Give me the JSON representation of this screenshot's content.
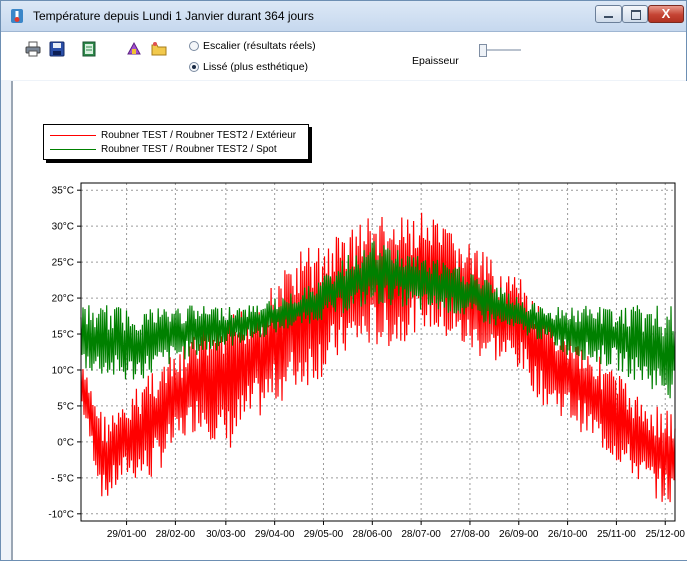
{
  "window": {
    "title": "Température depuis Lundi 1 Janvier durant 364 jours",
    "controls": {
      "minimize": "minimize",
      "maximize": "maximize",
      "close": "X"
    }
  },
  "toolbar": {
    "icons": [
      "printer-icon",
      "save-disk-icon",
      "book-icon",
      "paint-icon",
      "folder-icon"
    ],
    "mode_options": [
      {
        "label": "Escalier (résultats réels)",
        "checked": false
      },
      {
        "label": "Lissé (plus  esthétique)",
        "checked": true
      }
    ],
    "thickness_label": "Epaisseur",
    "thickness_value": 0
  },
  "chart_data": {
    "type": "line",
    "title": "",
    "xlabel": "",
    "ylabel": "",
    "y_unit": "°C",
    "ylim": [
      -11,
      36
    ],
    "yticks": [
      35,
      30,
      25,
      20,
      15,
      10,
      5,
      0,
      -5,
      -10
    ],
    "ytick_labels": [
      "35°C",
      "30°C",
      "25°C",
      "20°C",
      "15°C",
      "10°C",
      "5°C",
      "0°C",
      "- 5°C",
      "-10°C"
    ],
    "xlim": [
      "01/01-00",
      "31/12-00"
    ],
    "xticks": [
      "29/01-00",
      "28/02-00",
      "30/03-00",
      "29/04-00",
      "29/05-00",
      "28/06-00",
      "28/07-00",
      "27/08-00",
      "26/09-00",
      "26/10-00",
      "25/11-00",
      "25/12-00"
    ],
    "grid": true,
    "legend_position": "top-left",
    "series": [
      {
        "name": "Roubner TEST / Roubner TEST2 / Extérieur",
        "color": "#ff0000",
        "x": [
          "01/01-00",
          "15/01-00",
          "29/01-00",
          "12/02-00",
          "28/02-00",
          "14/03-00",
          "30/03-00",
          "14/04-00",
          "29/04-00",
          "14/05-00",
          "29/05-00",
          "13/06-00",
          "28/06-00",
          "13/07-00",
          "28/07-00",
          "12/08-00",
          "27/08-00",
          "11/09-00",
          "26/09-00",
          "11/10-00",
          "26/10-00",
          "10/11-00",
          "25/11-00",
          "10/12-00",
          "25/12-00",
          "31/12-00"
        ],
        "y_min": [
          5,
          -9,
          -5,
          -6,
          -1,
          2,
          -2,
          2,
          5,
          7,
          9,
          12,
          13,
          13,
          16,
          14,
          12,
          11,
          10,
          5,
          3,
          0,
          -3,
          -6,
          -9,
          -9
        ],
        "y_max": [
          11,
          4,
          5,
          11,
          12,
          16,
          17,
          20,
          22,
          27,
          28,
          30,
          32,
          31,
          32,
          30,
          28,
          25,
          23,
          18,
          16,
          13,
          10,
          6,
          5,
          4
        ]
      },
      {
        "name": "Roubner TEST / Roubner TEST2 / Spot",
        "color": "#008000",
        "x": [
          "01/01-00",
          "15/01-00",
          "29/01-00",
          "12/02-00",
          "28/02-00",
          "14/03-00",
          "30/03-00",
          "14/04-00",
          "29/04-00",
          "14/05-00",
          "29/05-00",
          "13/06-00",
          "28/06-00",
          "13/07-00",
          "28/07-00",
          "12/08-00",
          "27/08-00",
          "11/09-00",
          "26/09-00",
          "11/10-00",
          "26/10-00",
          "10/11-00",
          "25/11-00",
          "10/12-00",
          "25/12-00",
          "31/12-00"
        ],
        "y_min": [
          10,
          9,
          8,
          9,
          11,
          12,
          13,
          14,
          15,
          16,
          17,
          18,
          19,
          19,
          18,
          18,
          17,
          16,
          15,
          14,
          12,
          11,
          10,
          8,
          6,
          6
        ],
        "y_max": [
          19,
          19,
          19,
          19,
          19,
          19,
          19,
          19,
          20,
          21,
          23,
          26,
          28,
          27,
          26,
          25,
          24,
          22,
          20,
          19,
          19,
          19,
          19,
          19,
          19,
          19
        ]
      }
    ]
  }
}
